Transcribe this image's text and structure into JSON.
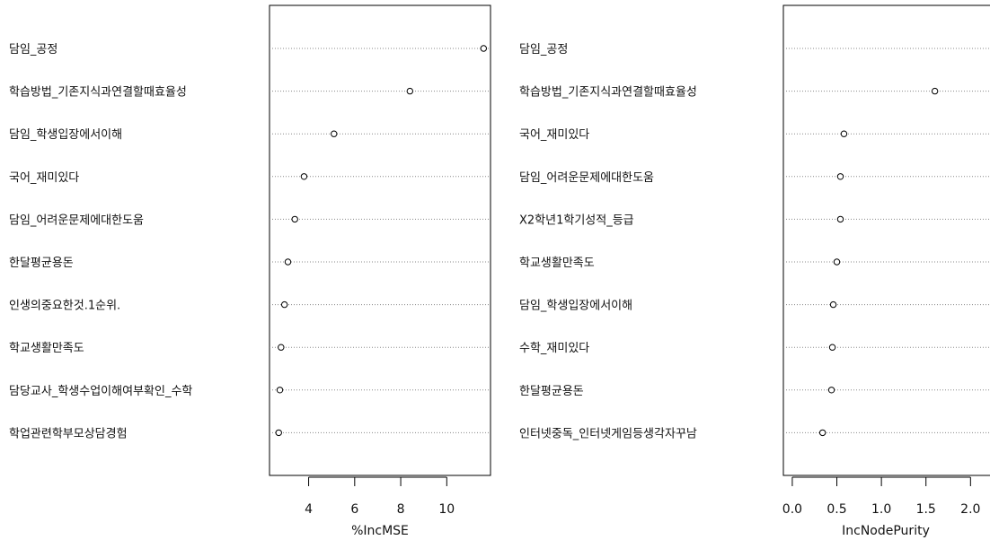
{
  "chart_data": [
    {
      "type": "dotchart",
      "xlabel": "%IncMSE",
      "xticks": [
        4,
        6,
        8,
        10
      ],
      "xlim": [
        2.3,
        11.9
      ],
      "categories": [
        "담임_공정",
        "학습방법_기존지식과연결할때효율성",
        "담임_학생입장에서이해",
        "국어_재미있다",
        "담임_어려운문제에대한도움",
        "한달평균용돈",
        "인생의중요한것.1순위.",
        "학교생활만족도",
        "담당교사_학생수업이해여부확인_수학",
        "학업관련학부모상담경험"
      ],
      "values": [
        11.6,
        8.4,
        5.1,
        3.8,
        3.4,
        3.1,
        2.95,
        2.8,
        2.75,
        2.7
      ],
      "grid": true
    },
    {
      "type": "dotchart",
      "xlabel": "IncNodePurity",
      "xticks": [
        0.0,
        0.5,
        1.0,
        1.5,
        2.0
      ],
      "xlim": [
        -0.1,
        2.4
      ],
      "categories": [
        "담임_공정",
        "학습방법_기존지식과연결할때효율성",
        "국어_재미있다",
        "담임_어려운문제에대한도움",
        "X2학년1학기성적_등급",
        "학교생활만족도",
        "담임_학생입장에서이해",
        "수학_재미있다",
        "한달평균용돈",
        "인터넷중독_인터넷게임등생각자꾸남"
      ],
      "values": [
        2.35,
        1.6,
        0.58,
        0.54,
        0.54,
        0.5,
        0.46,
        0.45,
        0.44,
        0.34
      ],
      "grid": true
    }
  ]
}
